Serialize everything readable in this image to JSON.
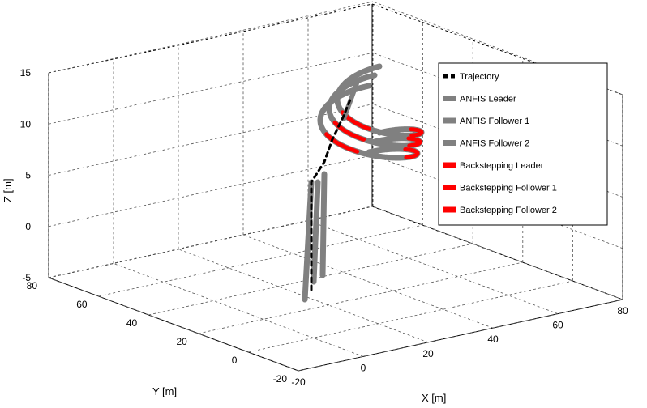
{
  "chart_data": {
    "type": "line",
    "title": "",
    "xlabel": "X [m]",
    "ylabel": "Y [m]",
    "zlabel": "Z [m]",
    "xlim": [
      -20,
      80
    ],
    "ylim": [
      -20,
      80
    ],
    "zlim": [
      -5,
      15
    ],
    "xticks": [
      "-20",
      "0",
      "20",
      "40",
      "60",
      "80"
    ],
    "yticks": [
      "-20",
      "0",
      "20",
      "40",
      "60",
      "80"
    ],
    "zticks": [
      "-5",
      "0",
      "5",
      "10",
      "15"
    ],
    "grid": true,
    "legend_position": "top-right",
    "series": [
      {
        "name": "Trajectory",
        "color": "#000000",
        "style": "dashed"
      },
      {
        "name": "ANFIS Leader",
        "color": "#808080",
        "style": "solid"
      },
      {
        "name": "ANFIS Follower 1",
        "color": "#808080",
        "style": "solid"
      },
      {
        "name": "ANFIS Follower 2",
        "color": "#808080",
        "style": "solid"
      },
      {
        "name": "Backstepping Leader",
        "color": "#ff0000",
        "style": "solid"
      },
      {
        "name": "Backstepping Follower 1",
        "color": "#ff0000",
        "style": "solid"
      },
      {
        "name": "Backstepping Follower 2",
        "color": "#ff0000",
        "style": "solid"
      }
    ]
  }
}
